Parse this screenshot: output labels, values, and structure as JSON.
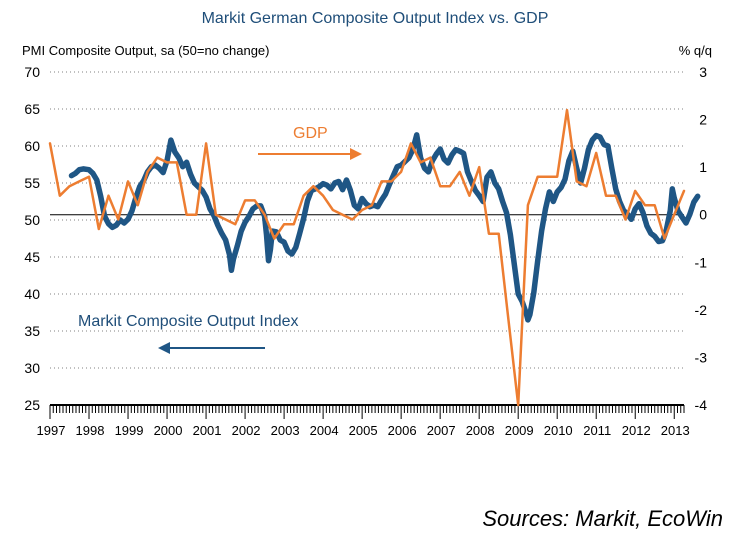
{
  "chart_data": {
    "type": "line",
    "title": "Markit German Composite Output Index vs. GDP",
    "ylabel_left": "PMI Composite Output, sa (50=no change)",
    "ylabel_right": "% q/q",
    "ylim_left": [
      25,
      70
    ],
    "ylim_right": [
      -4,
      3
    ],
    "yticks_left": [
      "70",
      "65",
      "60",
      "55",
      "50",
      "45",
      "40",
      "35",
      "30",
      "25"
    ],
    "yticks_right": [
      "3",
      "2",
      "1",
      "0",
      "-1",
      "-2",
      "-3",
      "-4"
    ],
    "categories": [
      "1997",
      "1998",
      "1999",
      "2000",
      "2001",
      "2002",
      "2003",
      "2004",
      "2005",
      "2006",
      "2007",
      "2008",
      "2009",
      "2010",
      "2011",
      "2012",
      "2013"
    ],
    "xlim": [
      1997.0,
      2013.25
    ],
    "grid": "horizontal dotted",
    "colors": {
      "pmi": "#1f5685",
      "gdp": "#ed7d31",
      "title": "#1f4e79"
    },
    "annotations": {
      "gdp_label": "GDP",
      "gdp_arrow": "right",
      "pmi_label": "Markit Composite Output Index",
      "pmi_arrow": "left"
    },
    "series": [
      {
        "name": "Markit Composite Output Index",
        "axis": "left",
        "points": [
          [
            1997.55,
            56.0
          ],
          [
            1997.65,
            56.3
          ],
          [
            1997.75,
            56.8
          ],
          [
            1997.85,
            56.9
          ],
          [
            1998.0,
            56.8
          ],
          [
            1998.1,
            56.3
          ],
          [
            1998.2,
            55.4
          ],
          [
            1998.3,
            53.2
          ],
          [
            1998.4,
            50.5
          ],
          [
            1998.5,
            49.5
          ],
          [
            1998.6,
            49.0
          ],
          [
            1998.7,
            49.3
          ],
          [
            1998.8,
            50.0
          ],
          [
            1998.9,
            49.6
          ],
          [
            1999.0,
            50.1
          ],
          [
            1999.1,
            51.2
          ],
          [
            1999.2,
            53.0
          ],
          [
            1999.3,
            54.5
          ],
          [
            1999.4,
            55.3
          ],
          [
            1999.5,
            56.5
          ],
          [
            1999.6,
            57.2
          ],
          [
            1999.7,
            57.4
          ],
          [
            1999.8,
            57.0
          ],
          [
            1999.9,
            56.4
          ],
          [
            2000.0,
            58.0
          ],
          [
            2000.1,
            60.8
          ],
          [
            2000.2,
            59.2
          ],
          [
            2000.3,
            58.4
          ],
          [
            2000.4,
            57.2
          ],
          [
            2000.5,
            57.8
          ],
          [
            2000.6,
            56.2
          ],
          [
            2000.7,
            55.0
          ],
          [
            2000.8,
            54.5
          ],
          [
            2000.9,
            54.0
          ],
          [
            2001.0,
            53.1
          ],
          [
            2001.1,
            51.5
          ],
          [
            2001.2,
            50.6
          ],
          [
            2001.3,
            49.3
          ],
          [
            2001.4,
            48.2
          ],
          [
            2001.5,
            47.3
          ],
          [
            2001.6,
            45.3
          ],
          [
            2001.65,
            43.2
          ],
          [
            2001.7,
            44.7
          ],
          [
            2001.8,
            46.5
          ],
          [
            2001.9,
            48.5
          ],
          [
            2002.0,
            49.7
          ],
          [
            2002.1,
            50.5
          ],
          [
            2002.2,
            51.5
          ],
          [
            2002.3,
            51.9
          ],
          [
            2002.4,
            51.9
          ],
          [
            2002.5,
            50.5
          ],
          [
            2002.55,
            48.0
          ],
          [
            2002.6,
            44.5
          ],
          [
            2002.65,
            46.0
          ],
          [
            2002.7,
            48.5
          ],
          [
            2002.8,
            48.4
          ],
          [
            2002.9,
            47.3
          ],
          [
            2003.0,
            47.0
          ],
          [
            2003.1,
            45.8
          ],
          [
            2003.2,
            45.4
          ],
          [
            2003.3,
            46.3
          ],
          [
            2003.4,
            48.2
          ],
          [
            2003.5,
            50.2
          ],
          [
            2003.6,
            52.6
          ],
          [
            2003.7,
            54.0
          ],
          [
            2003.8,
            54.2
          ],
          [
            2003.9,
            54.5
          ],
          [
            2004.0,
            54.9
          ],
          [
            2004.1,
            54.7
          ],
          [
            2004.2,
            54.2
          ],
          [
            2004.3,
            55.0
          ],
          [
            2004.4,
            55.2
          ],
          [
            2004.5,
            54.1
          ],
          [
            2004.6,
            55.4
          ],
          [
            2004.7,
            54.0
          ],
          [
            2004.8,
            52.0
          ],
          [
            2004.9,
            51.5
          ],
          [
            2005.0,
            52.9
          ],
          [
            2005.1,
            52.2
          ],
          [
            2005.2,
            51.8
          ],
          [
            2005.3,
            52.0
          ],
          [
            2005.4,
            51.8
          ],
          [
            2005.5,
            52.7
          ],
          [
            2005.6,
            53.5
          ],
          [
            2005.7,
            54.8
          ],
          [
            2005.8,
            56.0
          ],
          [
            2005.9,
            57.2
          ],
          [
            2006.0,
            57.4
          ],
          [
            2006.1,
            57.9
          ],
          [
            2006.2,
            58.4
          ],
          [
            2006.3,
            59.5
          ],
          [
            2006.4,
            61.5
          ],
          [
            2006.5,
            58.4
          ],
          [
            2006.6,
            57.0
          ],
          [
            2006.7,
            56.5
          ],
          [
            2006.8,
            58.0
          ],
          [
            2006.9,
            58.9
          ],
          [
            2007.0,
            59.6
          ],
          [
            2007.1,
            58.2
          ],
          [
            2007.2,
            57.7
          ],
          [
            2007.3,
            58.8
          ],
          [
            2007.4,
            59.5
          ],
          [
            2007.5,
            59.3
          ],
          [
            2007.6,
            59.0
          ],
          [
            2007.7,
            56.5
          ],
          [
            2007.8,
            55.2
          ],
          [
            2007.9,
            54.0
          ],
          [
            2008.0,
            53.3
          ],
          [
            2008.1,
            52.5
          ],
          [
            2008.2,
            55.8
          ],
          [
            2008.3,
            56.5
          ],
          [
            2008.4,
            55.0
          ],
          [
            2008.5,
            54.2
          ],
          [
            2008.6,
            52.5
          ],
          [
            2008.7,
            51.0
          ],
          [
            2008.8,
            48.0
          ],
          [
            2008.9,
            44.0
          ],
          [
            2009.0,
            40.0
          ],
          [
            2009.1,
            39.0
          ],
          [
            2009.2,
            37.5
          ],
          [
            2009.25,
            36.5
          ],
          [
            2009.3,
            37.2
          ],
          [
            2009.4,
            40.2
          ],
          [
            2009.5,
            44.5
          ],
          [
            2009.6,
            48.5
          ],
          [
            2009.7,
            51.5
          ],
          [
            2009.8,
            53.8
          ],
          [
            2009.9,
            52.5
          ],
          [
            2010.0,
            53.8
          ],
          [
            2010.1,
            54.4
          ],
          [
            2010.2,
            55.5
          ],
          [
            2010.3,
            58.0
          ],
          [
            2010.4,
            59.3
          ],
          [
            2010.5,
            57.0
          ],
          [
            2010.6,
            55.0
          ],
          [
            2010.7,
            57.0
          ],
          [
            2010.8,
            59.5
          ],
          [
            2010.9,
            60.8
          ],
          [
            2011.0,
            61.4
          ],
          [
            2011.1,
            61.2
          ],
          [
            2011.2,
            60.2
          ],
          [
            2011.3,
            60.0
          ],
          [
            2011.4,
            57.0
          ],
          [
            2011.5,
            54.2
          ],
          [
            2011.6,
            52.5
          ],
          [
            2011.7,
            51.3
          ],
          [
            2011.8,
            50.8
          ],
          [
            2011.9,
            50.1
          ],
          [
            2012.0,
            51.5
          ],
          [
            2012.1,
            52.2
          ],
          [
            2012.2,
            51.0
          ],
          [
            2012.3,
            49.2
          ],
          [
            2012.4,
            48.2
          ],
          [
            2012.5,
            47.8
          ],
          [
            2012.6,
            47.1
          ],
          [
            2012.7,
            47.2
          ],
          [
            2012.75,
            47.9
          ],
          [
            2012.8,
            48.7
          ],
          [
            2012.9,
            51.3
          ],
          [
            2012.95,
            54.2
          ],
          [
            2013.0,
            53.0
          ],
          [
            2013.1,
            51.2
          ],
          [
            2013.2,
            50.4
          ],
          [
            2013.3,
            49.6
          ],
          [
            2013.4,
            50.8
          ],
          [
            2013.5,
            52.4
          ],
          [
            2013.6,
            53.2
          ]
        ]
      },
      {
        "name": "GDP",
        "axis": "right",
        "points": [
          [
            1997.0,
            1.5
          ],
          [
            1997.25,
            0.4
          ],
          [
            1997.5,
            0.6
          ],
          [
            1997.75,
            0.7
          ],
          [
            1998.0,
            0.8
          ],
          [
            1998.25,
            -0.3
          ],
          [
            1998.5,
            0.4
          ],
          [
            1998.75,
            -0.1
          ],
          [
            1999.0,
            0.7
          ],
          [
            1999.25,
            0.2
          ],
          [
            1999.5,
            0.9
          ],
          [
            1999.75,
            1.2
          ],
          [
            2000.0,
            1.1
          ],
          [
            2000.25,
            1.1
          ],
          [
            2000.5,
            0.0
          ],
          [
            2000.75,
            0.0
          ],
          [
            2001.0,
            1.5
          ],
          [
            2001.25,
            0.0
          ],
          [
            2001.5,
            -0.1
          ],
          [
            2001.75,
            -0.2
          ],
          [
            2002.0,
            0.3
          ],
          [
            2002.25,
            0.3
          ],
          [
            2002.5,
            0.0
          ],
          [
            2002.75,
            -0.5
          ],
          [
            2003.0,
            -0.2
          ],
          [
            2003.25,
            -0.2
          ],
          [
            2003.5,
            0.4
          ],
          [
            2003.75,
            0.6
          ],
          [
            2004.0,
            0.4
          ],
          [
            2004.25,
            0.1
          ],
          [
            2004.5,
            0.0
          ],
          [
            2004.75,
            -0.1
          ],
          [
            2005.0,
            0.1
          ],
          [
            2005.25,
            0.2
          ],
          [
            2005.5,
            0.7
          ],
          [
            2005.75,
            0.7
          ],
          [
            2006.0,
            0.9
          ],
          [
            2006.25,
            1.5
          ],
          [
            2006.5,
            1.1
          ],
          [
            2006.75,
            1.2
          ],
          [
            2007.0,
            0.6
          ],
          [
            2007.25,
            0.6
          ],
          [
            2007.5,
            0.9
          ],
          [
            2007.75,
            0.4
          ],
          [
            2008.0,
            1.0
          ],
          [
            2008.25,
            -0.4
          ],
          [
            2008.5,
            -0.4
          ],
          [
            2008.75,
            -2.2
          ],
          [
            2009.0,
            -4.0
          ],
          [
            2009.25,
            0.2
          ],
          [
            2009.5,
            0.8
          ],
          [
            2009.75,
            0.8
          ],
          [
            2010.0,
            0.8
          ],
          [
            2010.25,
            2.2
          ],
          [
            2010.5,
            0.7
          ],
          [
            2010.75,
            0.6
          ],
          [
            2011.0,
            1.3
          ],
          [
            2011.25,
            0.4
          ],
          [
            2011.5,
            0.4
          ],
          [
            2011.75,
            -0.1
          ],
          [
            2012.0,
            0.5
          ],
          [
            2012.25,
            0.2
          ],
          [
            2012.5,
            0.2
          ],
          [
            2012.75,
            -0.5
          ],
          [
            2013.0,
            0.0
          ],
          [
            2013.25,
            0.5
          ]
        ]
      }
    ]
  },
  "source_note": "Sources: Markit, EcoWin"
}
